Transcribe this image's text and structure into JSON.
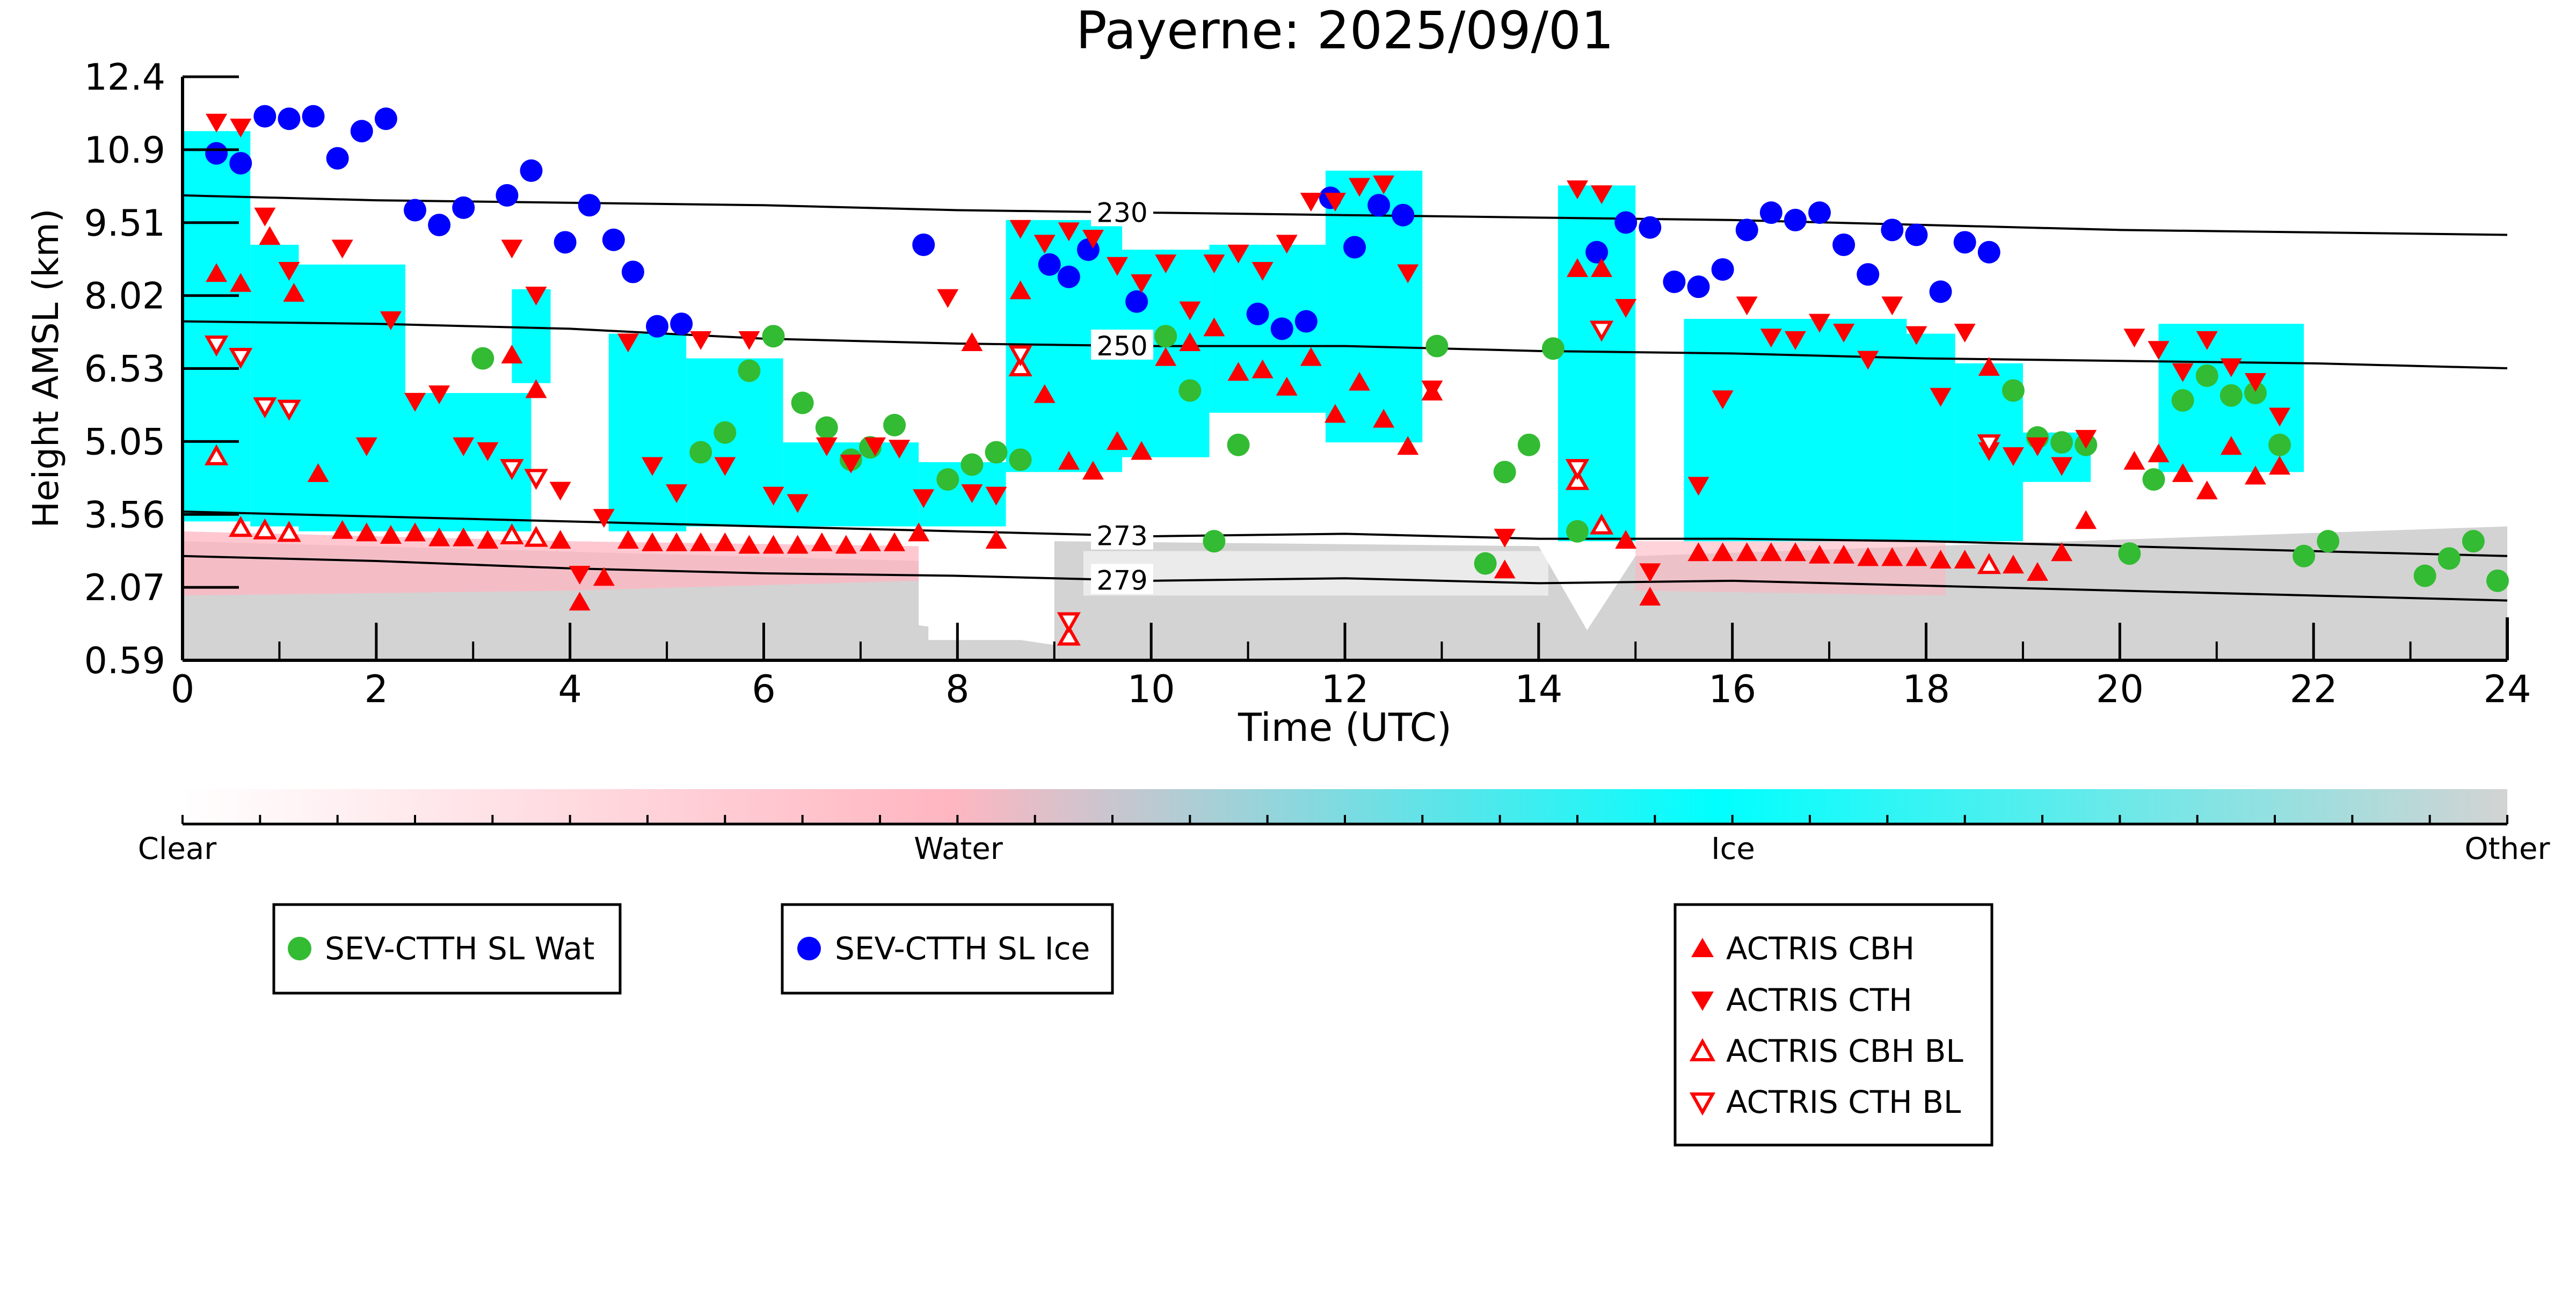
{
  "chart_data": {
    "type": "scatter",
    "title": "Payerne: 2025/09/01",
    "xlabel": "Time (UTC)",
    "ylabel": "Height AMSL (km)",
    "xlim": [
      0,
      24
    ],
    "ylim": [
      0.59,
      12.4
    ],
    "xticks": [
      "0",
      "2",
      "4",
      "6",
      "8",
      "10",
      "12",
      "14",
      "16",
      "18",
      "20",
      "22",
      "24"
    ],
    "yticks": [
      "0.59",
      "2.07",
      "3.56",
      "5.05",
      "6.53",
      "8.02",
      "9.51",
      "10.9",
      "12.4"
    ],
    "colorbar": {
      "labels": [
        "Clear",
        "Water",
        "Ice",
        "Other"
      ],
      "colors": [
        "#ffffff",
        "#ffb6c1",
        "#00ffff",
        "#d3d3d3"
      ]
    },
    "isotherms": [
      {
        "label": "230",
        "points": [
          [
            0,
            10.0
          ],
          [
            2,
            9.9
          ],
          [
            4,
            9.85
          ],
          [
            6,
            9.8
          ],
          [
            8,
            9.7
          ],
          [
            10,
            9.65
          ],
          [
            12,
            9.6
          ],
          [
            14,
            9.55
          ],
          [
            16,
            9.5
          ],
          [
            18,
            9.4
          ],
          [
            20,
            9.3
          ],
          [
            22,
            9.25
          ],
          [
            24,
            9.2
          ]
        ]
      },
      {
        "label": "250",
        "points": [
          [
            0,
            7.45
          ],
          [
            2,
            7.4
          ],
          [
            4,
            7.3
          ],
          [
            6,
            7.1
          ],
          [
            8,
            7.0
          ],
          [
            10,
            6.95
          ],
          [
            12,
            6.95
          ],
          [
            14,
            6.85
          ],
          [
            16,
            6.8
          ],
          [
            18,
            6.7
          ],
          [
            20,
            6.65
          ],
          [
            22,
            6.6
          ],
          [
            24,
            6.5
          ]
        ]
      },
      {
        "label": "273",
        "points": [
          [
            0,
            3.6
          ],
          [
            2,
            3.5
          ],
          [
            4,
            3.4
          ],
          [
            6,
            3.3
          ],
          [
            8,
            3.2
          ],
          [
            10,
            3.1
          ],
          [
            12,
            3.15
          ],
          [
            14,
            3.05
          ],
          [
            16,
            3.05
          ],
          [
            18,
            3.0
          ],
          [
            20,
            2.9
          ],
          [
            22,
            2.8
          ],
          [
            24,
            2.7
          ]
        ]
      },
      {
        "label": "279",
        "points": [
          [
            0,
            2.7
          ],
          [
            2,
            2.6
          ],
          [
            4,
            2.45
          ],
          [
            6,
            2.35
          ],
          [
            8,
            2.3
          ],
          [
            10,
            2.2
          ],
          [
            12,
            2.25
          ],
          [
            14,
            2.15
          ],
          [
            16,
            2.2
          ],
          [
            18,
            2.1
          ],
          [
            20,
            2.0
          ],
          [
            22,
            1.9
          ],
          [
            24,
            1.8
          ]
        ]
      }
    ],
    "legend": {
      "sev_wat": "SEV-CTTH SL Wat",
      "sev_ice": "SEV-CTTH SL Ice",
      "cbh": "ACTRIS CBH",
      "cth": "ACTRIS CTH",
      "cbh_bl": "ACTRIS CBH BL",
      "cth_bl": "ACTRIS CTH BL"
    },
    "colors": {
      "water_marker": "#33bb33",
      "ice_marker": "#0000ff",
      "actris": "#ff0000",
      "ice_field": "#00ffff",
      "other_field": "#d3d3d3",
      "water_field": "#ffb6c1",
      "line": "#000000"
    },
    "series": [
      {
        "name": "SEV-CTTH SL Ice",
        "marker": "circle",
        "x": [
          0.35,
          0.6,
          0.85,
          1.1,
          1.35,
          1.6,
          1.85,
          2.1,
          2.4,
          2.65,
          2.9,
          3.35,
          3.6,
          3.95,
          4.2,
          4.45,
          4.65,
          4.9,
          5.15,
          7.65,
          8.95,
          9.15,
          9.35,
          9.85,
          11.1,
          11.35,
          11.6,
          11.85,
          12.1,
          12.35,
          12.6,
          14.6,
          14.9,
          15.15,
          15.4,
          15.65,
          15.9,
          16.15,
          16.4,
          16.65,
          16.9,
          17.15,
          17.4,
          17.65,
          17.9,
          18.15,
          18.4,
          18.65
        ],
        "y": [
          10.85,
          10.65,
          11.6,
          11.55,
          11.6,
          10.75,
          11.3,
          11.55,
          9.7,
          9.4,
          9.75,
          10.0,
          10.5,
          9.05,
          9.8,
          9.1,
          8.45,
          7.35,
          7.4,
          9.0,
          8.6,
          8.35,
          8.9,
          7.85,
          7.6,
          7.3,
          7.45,
          9.95,
          8.95,
          9.8,
          9.6,
          8.85,
          9.45,
          9.35,
          8.25,
          8.15,
          8.5,
          9.3,
          9.65,
          9.5,
          9.65,
          9.0,
          8.4,
          9.3,
          9.2,
          8.05,
          9.05,
          8.85
        ]
      },
      {
        "name": "SEV-CTTH SL Wat",
        "marker": "circle",
        "x": [
          3.1,
          5.35,
          5.6,
          5.85,
          6.1,
          6.4,
          6.65,
          6.9,
          7.1,
          7.35,
          7.9,
          8.15,
          8.4,
          8.65,
          10.15,
          10.4,
          10.65,
          10.9,
          12.95,
          13.45,
          13.65,
          13.9,
          14.15,
          14.4,
          18.9,
          19.15,
          19.4,
          19.65,
          20.1,
          20.35,
          20.65,
          20.9,
          21.15,
          21.4,
          21.65,
          21.9,
          22.15,
          23.15,
          23.4,
          23.65,
          23.9
        ],
        "y": [
          6.7,
          4.8,
          5.2,
          6.45,
          7.15,
          5.8,
          5.3,
          4.65,
          4.9,
          5.35,
          4.25,
          4.55,
          4.8,
          4.65,
          7.15,
          6.05,
          3.0,
          4.95,
          6.95,
          2.55,
          4.4,
          4.95,
          6.9,
          3.2,
          6.05,
          5.1,
          5.0,
          4.95,
          2.75,
          4.25,
          5.85,
          6.35,
          5.95,
          6.0,
          4.95,
          2.7,
          3.0,
          2.3,
          2.65,
          3.0,
          2.2
        ]
      },
      {
        "name": "ACTRIS CBH",
        "marker": "triangle-up",
        "x": [
          0.35,
          0.6,
          0.9,
          1.15,
          1.4,
          1.65,
          1.9,
          2.15,
          2.4,
          2.65,
          2.9,
          3.15,
          3.4,
          3.65,
          3.9,
          4.1,
          4.35,
          4.6,
          4.85,
          5.1,
          5.35,
          5.6,
          5.85,
          6.1,
          6.35,
          6.6,
          6.85,
          7.1,
          7.35,
          7.6,
          8.15,
          8.4,
          8.65,
          8.9,
          9.15,
          9.4,
          9.65,
          9.9,
          10.15,
          10.4,
          10.65,
          10.9,
          11.15,
          11.4,
          11.65,
          11.9,
          12.15,
          12.4,
          12.65,
          12.9,
          13.65,
          14.4,
          14.65,
          14.9,
          15.15,
          15.65,
          15.9,
          16.15,
          16.4,
          16.65,
          16.9,
          17.15,
          17.4,
          17.65,
          17.9,
          18.15,
          18.4,
          18.65,
          18.9,
          19.15,
          19.4,
          19.65,
          20.15,
          20.4,
          20.65,
          20.9,
          21.15,
          21.4,
          21.65
        ],
        "y": [
          8.4,
          8.2,
          9.15,
          8.0,
          4.35,
          3.2,
          3.15,
          3.1,
          3.15,
          3.05,
          3.05,
          3.0,
          6.75,
          6.05,
          3.0,
          1.75,
          2.25,
          3.0,
          2.95,
          2.95,
          2.95,
          2.95,
          2.9,
          2.9,
          2.9,
          2.95,
          2.9,
          2.95,
          2.95,
          3.15,
          7.0,
          3.0,
          8.05,
          5.95,
          4.6,
          4.4,
          5.0,
          4.8,
          6.7,
          7.0,
          7.3,
          6.4,
          6.45,
          6.1,
          6.7,
          5.55,
          6.2,
          5.45,
          4.9,
          6.0,
          2.4,
          8.5,
          8.5,
          3.0,
          1.85,
          2.75,
          2.75,
          2.75,
          2.75,
          2.75,
          2.7,
          2.7,
          2.65,
          2.65,
          2.65,
          2.6,
          2.6,
          6.5,
          2.5,
          2.35,
          2.75,
          3.4,
          4.6,
          4.75,
          4.35,
          4.0,
          4.9,
          4.3,
          4.5
        ]
      },
      {
        "name": "ACTRIS CTH",
        "marker": "triangle-down",
        "x": [
          0.35,
          0.6,
          0.85,
          1.1,
          1.65,
          1.9,
          2.15,
          2.4,
          2.65,
          2.9,
          3.15,
          3.4,
          3.65,
          3.9,
          4.1,
          4.35,
          4.6,
          4.85,
          5.1,
          5.35,
          5.6,
          5.85,
          6.1,
          6.35,
          6.65,
          6.9,
          7.15,
          7.4,
          7.65,
          7.9,
          8.15,
          8.4,
          8.65,
          8.9,
          9.15,
          9.4,
          9.65,
          9.9,
          10.15,
          10.4,
          10.65,
          10.9,
          11.15,
          11.4,
          11.65,
          11.9,
          12.15,
          12.4,
          12.65,
          12.9,
          13.65,
          14.4,
          14.65,
          14.9,
          15.15,
          15.65,
          15.9,
          16.15,
          16.4,
          16.65,
          16.9,
          17.15,
          17.4,
          17.65,
          17.9,
          18.15,
          18.4,
          18.65,
          18.9,
          19.15,
          19.4,
          19.65,
          20.15,
          20.4,
          20.65,
          20.9,
          21.15,
          21.4,
          21.65
        ],
        "y": [
          11.5,
          11.4,
          9.6,
          8.5,
          8.95,
          4.95,
          7.5,
          5.85,
          6.0,
          4.95,
          4.85,
          8.95,
          8.0,
          4.05,
          2.35,
          3.5,
          7.05,
          4.55,
          4.0,
          7.1,
          4.55,
          7.1,
          3.95,
          3.8,
          4.95,
          4.6,
          4.95,
          4.9,
          3.9,
          7.95,
          4.0,
          3.95,
          9.35,
          9.05,
          9.3,
          9.15,
          8.6,
          8.25,
          8.65,
          7.7,
          8.65,
          8.85,
          8.5,
          9.05,
          9.9,
          9.9,
          10.2,
          10.25,
          8.45,
          6.1,
          3.1,
          10.15,
          10.05,
          7.75,
          2.4,
          4.15,
          5.9,
          7.8,
          7.15,
          7.1,
          7.45,
          7.25,
          6.7,
          7.8,
          7.2,
          5.95,
          7.25,
          4.85,
          4.75,
          4.95,
          4.55,
          5.1,
          7.15,
          6.9,
          6.45,
          7.1,
          6.55,
          6.25,
          5.55
        ]
      },
      {
        "name": "ACTRIS CBH BL",
        "marker": "triangle-up-open",
        "x": [
          0.35,
          0.6,
          0.85,
          1.1,
          3.4,
          3.65,
          8.65,
          9.15,
          14.4,
          14.65,
          18.65
        ],
        "y": [
          4.7,
          3.25,
          3.2,
          3.15,
          3.1,
          3.05,
          6.5,
          1.05,
          4.2,
          3.3,
          2.5
        ]
      },
      {
        "name": "ACTRIS CTH BL",
        "marker": "triangle-down-open",
        "x": [
          0.35,
          0.6,
          0.85,
          1.1,
          3.4,
          3.65,
          8.65,
          9.15,
          14.4,
          14.65,
          18.65
        ],
        "y": [
          7.0,
          6.75,
          5.75,
          5.7,
          4.5,
          4.3,
          6.8,
          1.4,
          4.5,
          7.3,
          5.0
        ]
      }
    ]
  }
}
